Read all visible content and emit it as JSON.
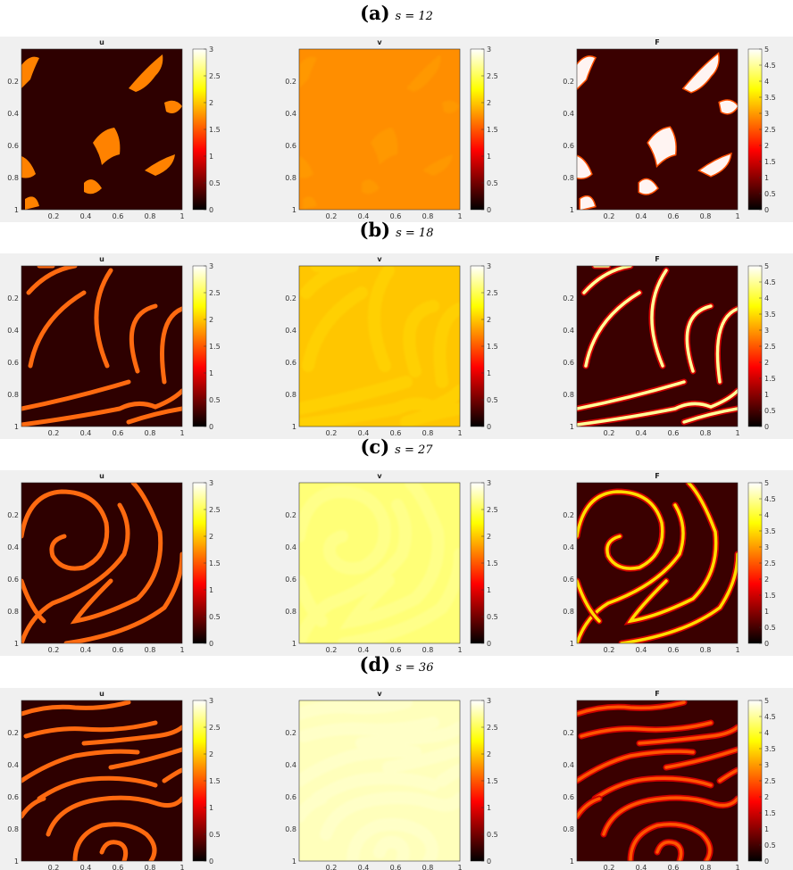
{
  "rows": [
    {
      "letter": "(a)",
      "param": "s = 12",
      "panels": [
        {
          "title": "u",
          "var": "u",
          "cmax": 3,
          "ticks": [
            "3",
            "2.5",
            "2",
            "1.5",
            "1",
            "0.5",
            "0"
          ]
        },
        {
          "title": "v",
          "var": "v",
          "cmax": 3,
          "ticks": [
            "3",
            "2.5",
            "2",
            "1.5",
            "1",
            "0.5",
            "0"
          ]
        },
        {
          "title": "F",
          "var": "F",
          "cmax": 5,
          "ticks": [
            "5",
            "4.5",
            "4",
            "3.5",
            "3",
            "2.5",
            "2",
            "1.5",
            "1",
            "0.5",
            "0"
          ]
        }
      ]
    },
    {
      "letter": "(b)",
      "param": "s = 18",
      "panels": [
        {
          "title": "u",
          "var": "u",
          "cmax": 3,
          "ticks": [
            "3",
            "2.5",
            "2",
            "1.5",
            "1",
            "0.5",
            "0"
          ]
        },
        {
          "title": "v",
          "var": "v",
          "cmax": 3,
          "ticks": [
            "3",
            "2.5",
            "2",
            "1.5",
            "1",
            "0.5",
            "0"
          ]
        },
        {
          "title": "F",
          "var": "F",
          "cmax": 5,
          "ticks": [
            "5",
            "4.5",
            "4",
            "3.5",
            "3",
            "2.5",
            "2",
            "1.5",
            "1",
            "0.5",
            "0"
          ]
        }
      ]
    },
    {
      "letter": "(c)",
      "param": "s = 27",
      "panels": [
        {
          "title": "u",
          "var": "u",
          "cmax": 3,
          "ticks": [
            "3",
            "2.5",
            "2",
            "1.5",
            "1",
            "0.5",
            "0"
          ]
        },
        {
          "title": "v",
          "var": "v",
          "cmax": 3,
          "ticks": [
            "3",
            "2.5",
            "2",
            "1.5",
            "1",
            "0.5",
            "0"
          ]
        },
        {
          "title": "F",
          "var": "F",
          "cmax": 5,
          "ticks": [
            "5",
            "4.5",
            "4",
            "3.5",
            "3",
            "2.5",
            "2",
            "1.5",
            "1",
            "0.5",
            "0"
          ]
        }
      ]
    },
    {
      "letter": "(d)",
      "param": "s = 36",
      "panels": [
        {
          "title": "u",
          "var": "u",
          "cmax": 3,
          "ticks": [
            "3",
            "2.5",
            "2",
            "1.5",
            "1",
            "0.5",
            "0"
          ]
        },
        {
          "title": "v",
          "var": "v",
          "cmax": 3,
          "ticks": [
            "3",
            "2.5",
            "2",
            "1.5",
            "1",
            "0.5",
            "0"
          ]
        },
        {
          "title": "F",
          "var": "F",
          "cmax": 5,
          "ticks": [
            "5",
            "4.5",
            "4",
            "3.5",
            "3",
            "2.5",
            "2",
            "1.5",
            "1",
            "0.5",
            "0"
          ]
        }
      ]
    }
  ],
  "chart_data": {
    "type": "heatmap",
    "colormap": "hot",
    "x_ticks": [
      "0.2",
      "0.4",
      "0.6",
      "0.8",
      "1"
    ],
    "y_ticks": [
      "0.2",
      "0.4",
      "0.6",
      "0.8",
      "1"
    ],
    "xlim": [
      0,
      1
    ],
    "ylim": [
      0,
      1
    ],
    "v_fill_level": {
      "s = 12": 1.75,
      "s = 18": 2.0,
      "s = 27": 2.6,
      "s = 36": 2.8
    },
    "u_pattern_level": 1.7,
    "F_pattern_peak": {
      "s = 12": 5,
      "s = 18": 4.5,
      "s = 27": 3.5,
      "s = 36": 2.5
    }
  }
}
